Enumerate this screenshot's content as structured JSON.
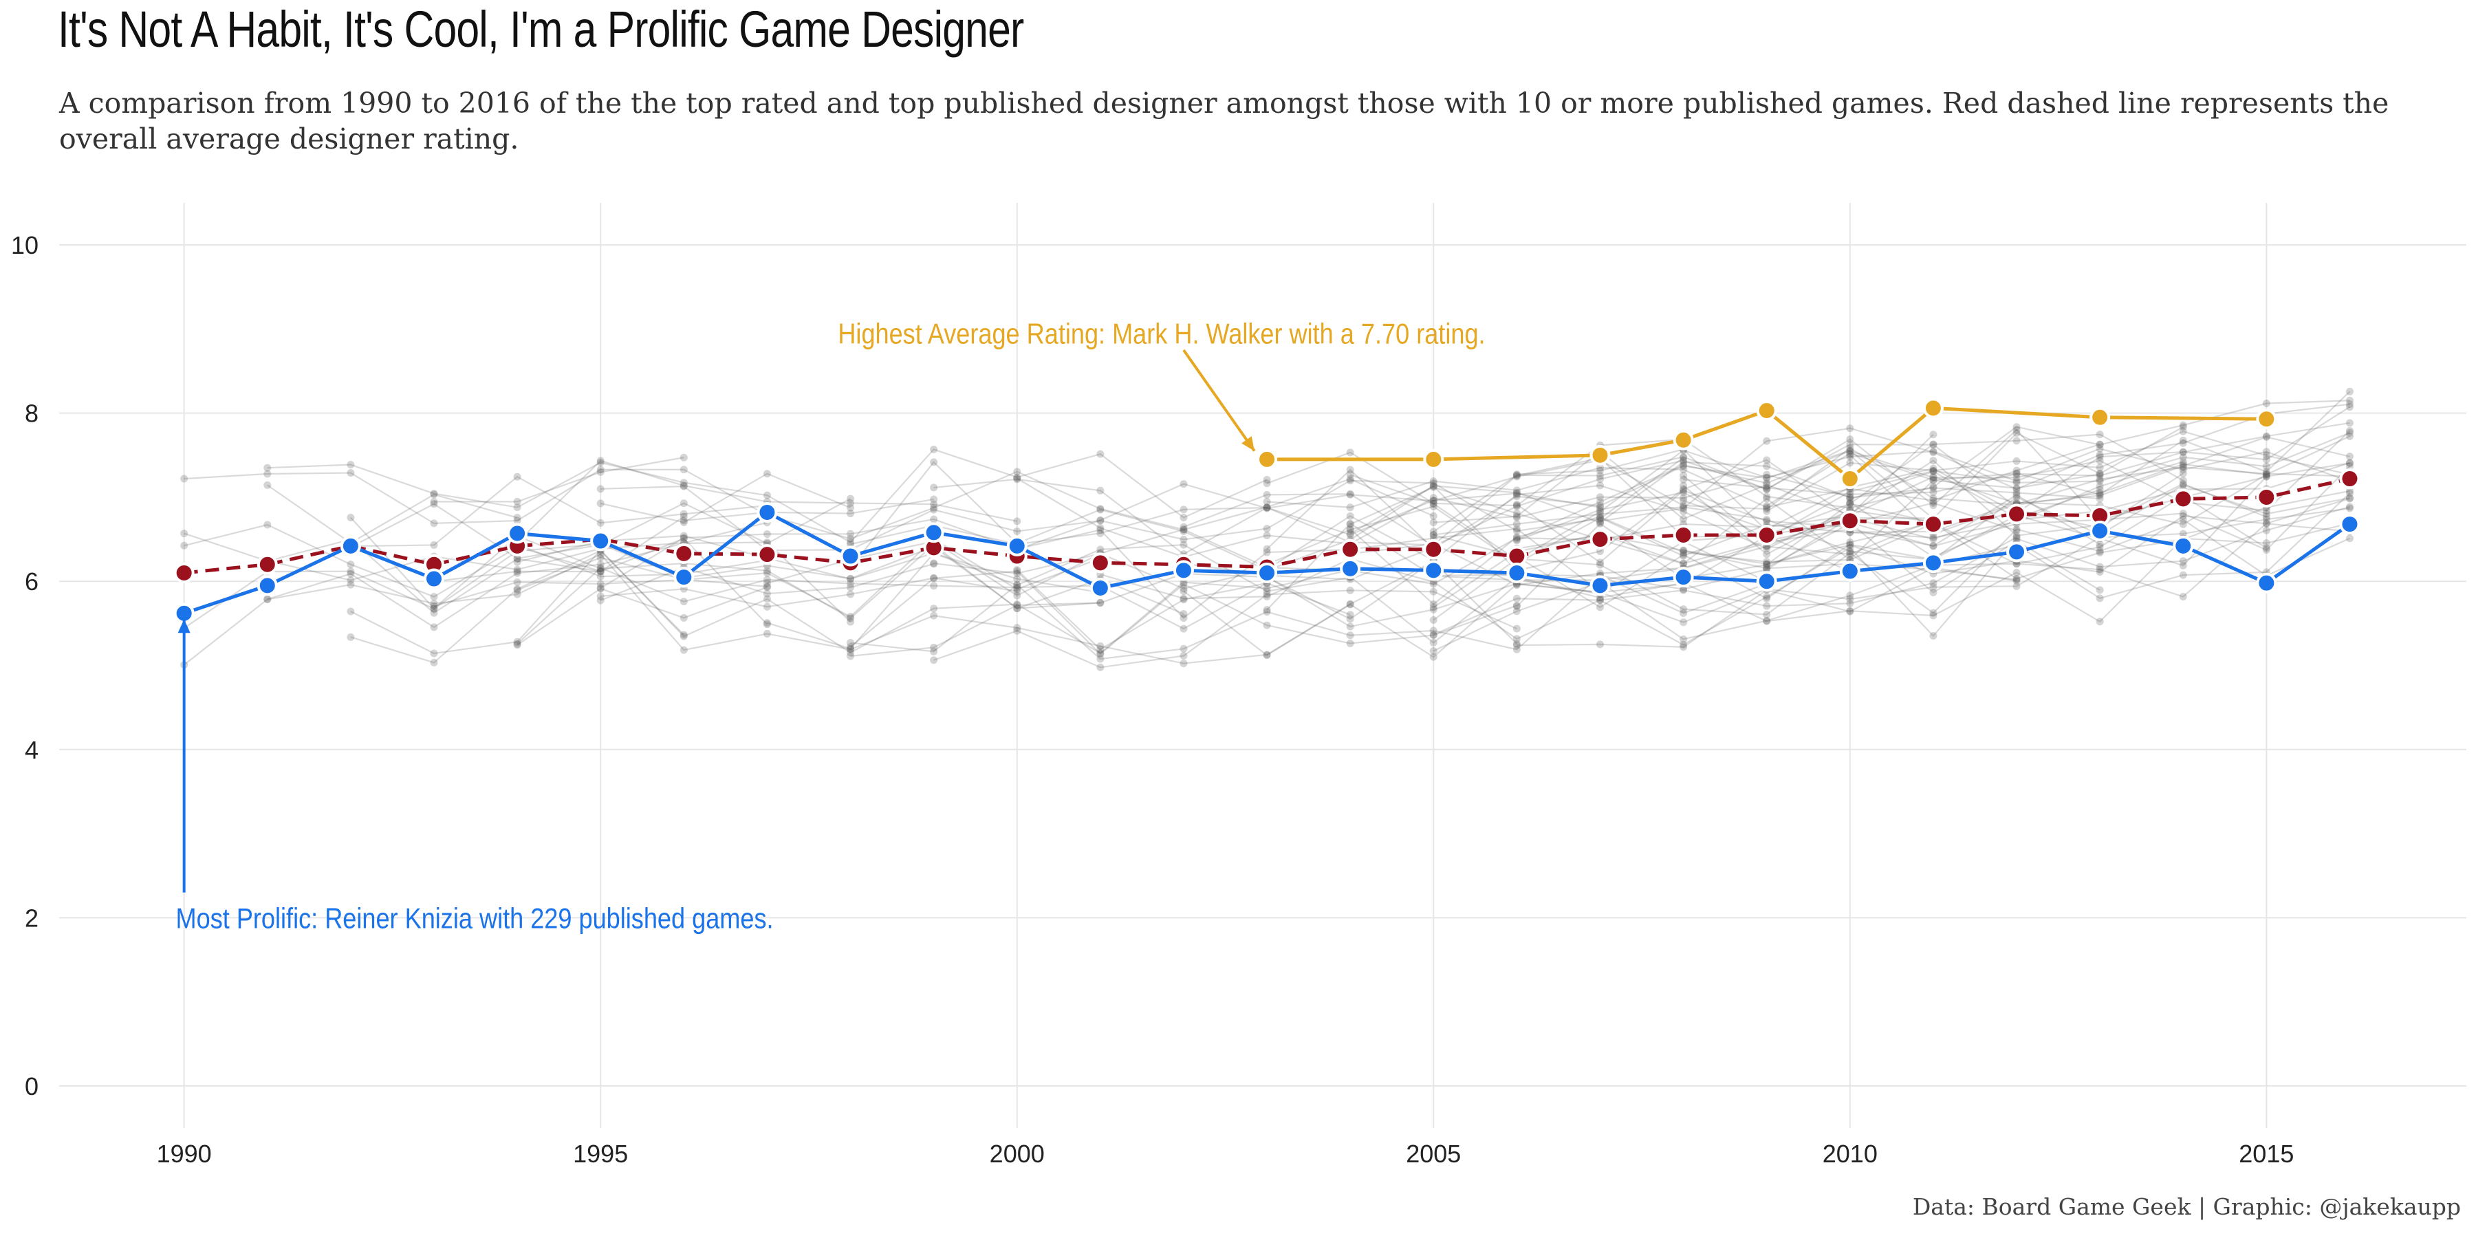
{
  "title": "It's Not A Habit, It's Cool, I'm a Prolific Game Designer",
  "subtitle": "A comparison from 1990 to 2016 of the the top rated and top published designer amongst those with 10 or more published games. Red dashed line represents the overall average designer rating.",
  "caption": "Data: Board Game Geek | Graphic: @jakekaupp",
  "colors": {
    "background_designers": "#555555",
    "prolific": "#1a73e8",
    "top_rated": "#e6a823",
    "average": "#9b111e",
    "grid": "#e6e6e6"
  },
  "chart_data": {
    "type": "line",
    "xlim": [
      1988.5,
      2017.4
    ],
    "ylim": [
      -0.5,
      10.5
    ],
    "x_ticks": [
      1990,
      1995,
      2000,
      2005,
      2010,
      2015
    ],
    "y_ticks": [
      0,
      2,
      4,
      6,
      8,
      10
    ],
    "grid": true,
    "background_series_note": "many other designers drawn as faint grey lines",
    "series": [
      {
        "key": "average",
        "style": "dashed",
        "x": [
          1990,
          1991,
          1992,
          1993,
          1994,
          1995,
          1996,
          1997,
          1998,
          1999,
          2000,
          2001,
          2002,
          2003,
          2004,
          2005,
          2006,
          2007,
          2008,
          2009,
          2010,
          2011,
          2012,
          2013,
          2014,
          2015,
          2016
        ],
        "y": [
          6.1,
          6.2,
          6.42,
          6.2,
          6.42,
          6.5,
          6.33,
          6.32,
          6.22,
          6.4,
          6.3,
          6.22,
          6.2,
          6.17,
          6.38,
          6.38,
          6.3,
          6.5,
          6.55,
          6.55,
          6.72,
          6.68,
          6.8,
          6.78,
          6.98,
          7.0,
          7.22
        ]
      },
      {
        "key": "prolific",
        "style": "solid",
        "x": [
          1990,
          1991,
          1992,
          1993,
          1994,
          1995,
          1996,
          1997,
          1998,
          1999,
          2000,
          2001,
          2002,
          2003,
          2004,
          2005,
          2006,
          2007,
          2008,
          2009,
          2010,
          2011,
          2012,
          2013,
          2014,
          2015,
          2016
        ],
        "y": [
          5.62,
          5.95,
          6.42,
          6.03,
          6.57,
          6.48,
          6.05,
          6.82,
          6.3,
          6.58,
          6.42,
          5.92,
          6.13,
          6.1,
          6.15,
          6.13,
          6.1,
          5.95,
          6.05,
          6.0,
          6.12,
          6.22,
          6.35,
          6.6,
          6.42,
          5.98,
          6.68
        ]
      },
      {
        "key": "top_rated",
        "style": "solid",
        "x": [
          2003,
          2005,
          2007,
          2008,
          2009,
          2010,
          2011,
          2013,
          2015
        ],
        "y": [
          7.45,
          7.45,
          7.5,
          7.68,
          8.03,
          7.22,
          8.06,
          7.95,
          7.93
        ]
      }
    ],
    "annotations": [
      {
        "key": "prolific",
        "text": "Most Prolific: Reiner Knizia with 229 published games.",
        "text_pos": [
          1989.9,
          2.0
        ],
        "arrow_from": [
          1990,
          2.3
        ],
        "arrow_to": [
          1990,
          5.55
        ]
      },
      {
        "key": "top_rated",
        "text": "Highest Average Rating: Mark H. Walker with a 7.70 rating.",
        "text_pos": [
          1997.85,
          8.95
        ],
        "arrow_from": [
          2002.0,
          8.75
        ],
        "arrow_to": [
          2002.85,
          7.55
        ]
      }
    ]
  }
}
